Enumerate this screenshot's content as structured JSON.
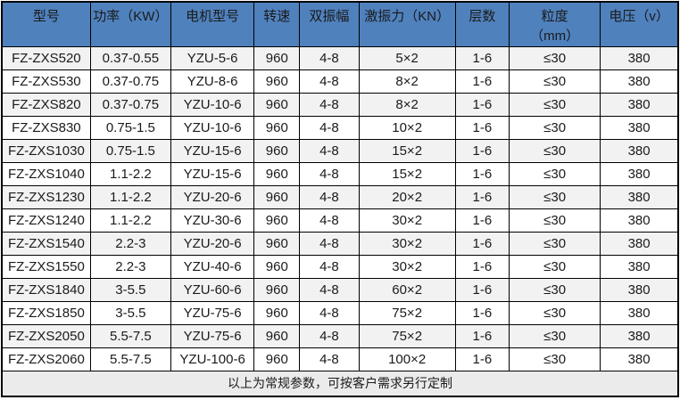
{
  "table": {
    "columns": [
      {
        "label": "型号"
      },
      {
        "label": "功率（KW）"
      },
      {
        "label": "电机型号"
      },
      {
        "label": "转速"
      },
      {
        "label": "双振幅"
      },
      {
        "label": "激振力（KN）"
      },
      {
        "label": "层数"
      },
      {
        "label": "粒度\n（mm）"
      },
      {
        "label": "电压（v）"
      }
    ],
    "rows": [
      [
        "FZ-ZXS520",
        "0.37-0.55",
        "YZU-5-6",
        "960",
        "4-8",
        "5×2",
        "1-6",
        "≤30",
        "380"
      ],
      [
        "FZ-ZXS530",
        "0.37-0.75",
        "YZU-8-6",
        "960",
        "4-8",
        "8×2",
        "1-6",
        "≤30",
        "380"
      ],
      [
        "FZ-ZXS820",
        "0.37-0.75",
        "YZU-10-6",
        "960",
        "4-8",
        "8×2",
        "1-6",
        "≤30",
        "380"
      ],
      [
        "FZ-ZXS830",
        "0.75-1.5",
        "YZU-10-6",
        "960",
        "4-8",
        "10×2",
        "1-6",
        "≤30",
        "380"
      ],
      [
        "FZ-ZXS1030",
        "0.75-1.5",
        "YZU-15-6",
        "960",
        "4-8",
        "15×2",
        "1-6",
        "≤30",
        "380"
      ],
      [
        "FZ-ZXS1040",
        "1.1-2.2",
        "YZU-15-6",
        "960",
        "4-8",
        "15×2",
        "1-6",
        "≤30",
        "380"
      ],
      [
        "FZ-ZXS1230",
        "1.1-2.2",
        "YZU-20-6",
        "960",
        "4-8",
        "20×2",
        "1-6",
        "≤30",
        "380"
      ],
      [
        "FZ-ZXS1240",
        "1.1-2.2",
        "YZU-30-6",
        "960",
        "4-8",
        "30×2",
        "1-6",
        "≤30",
        "380"
      ],
      [
        "FZ-ZXS1540",
        "2.2-3",
        "YZU-20-6",
        "960",
        "4-8",
        "30×2",
        "1-6",
        "≤30",
        "380"
      ],
      [
        "FZ-ZXS1550",
        "2.2-3",
        "YZU-40-6",
        "960",
        "4-8",
        "30×2",
        "1-6",
        "≤30",
        "380"
      ],
      [
        "FZ-ZXS1840",
        "3-5.5",
        "YZU-60-6",
        "960",
        "4-8",
        "60×2",
        "1-6",
        "≤30",
        "380"
      ],
      [
        "FZ-ZXS1850",
        "3-5.5",
        "YZU-75-6",
        "960",
        "4-8",
        "75×2",
        "1-6",
        "≤30",
        "380"
      ],
      [
        "FZ-ZXS2050",
        "5.5-7.5",
        "YZU-75-6",
        "960",
        "4-8",
        "75×2",
        "1-6",
        "≤30",
        "380"
      ],
      [
        "FZ-ZXS2060",
        "5.5-7.5",
        "YZU-100-6",
        "960",
        "4-8",
        "100×2",
        "1-6",
        "≤30",
        "380"
      ]
    ],
    "footer_note": "以上为常规参数，可按客户需求另行定制"
  },
  "colors": {
    "header_bg": "#4f81bd",
    "row_stripe_bg": "#f2f2f2",
    "row_bg": "#ffffff",
    "footer_bg": "#ebebeb",
    "border": "#000000",
    "text": "#1a1a1a"
  }
}
